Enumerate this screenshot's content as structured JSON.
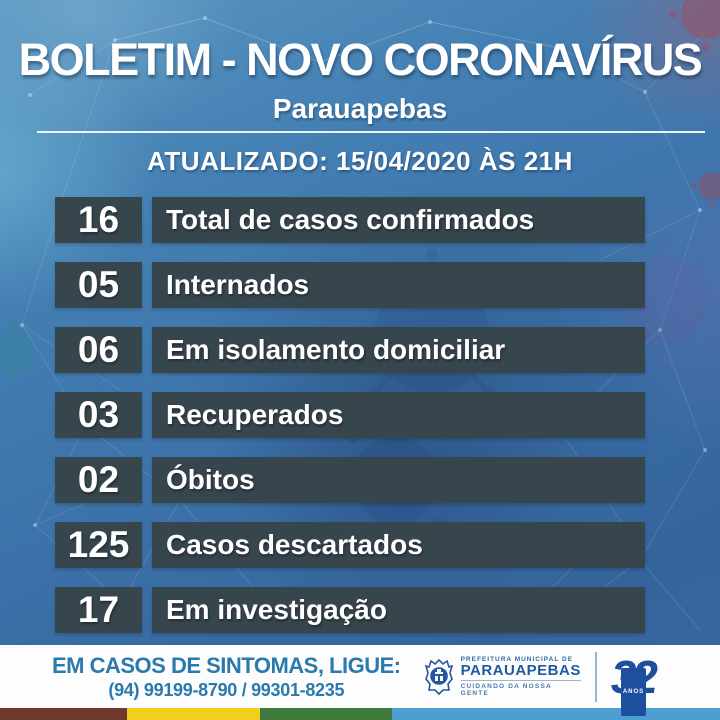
{
  "header": {
    "title": "BOLETIM - NOVO CORONAVÍRUS",
    "subtitle": "Parauapebas",
    "updated": "ATUALIZADO: 15/04/2020 ÀS 21H"
  },
  "stats": [
    {
      "value": "16",
      "label": "Total de casos confirmados"
    },
    {
      "value": "05",
      "label": "Internados"
    },
    {
      "value": "06",
      "label": "Em isolamento domiciliar"
    },
    {
      "value": "03",
      "label": "Recuperados"
    },
    {
      "value": "02",
      "label": "Óbitos"
    },
    {
      "value": "125",
      "label": "Casos descartados"
    },
    {
      "value": "17",
      "label": "Em investigação"
    }
  ],
  "footer": {
    "call_heading": "EM CASOS DE SINTOMAS, LIGUE:",
    "phone_numbers": "(94) 99199-8790 / 99301-8235",
    "logo": {
      "line1": "PREFEITURA MUNICIPAL DE",
      "name": "PARAUAPEBAS",
      "tagline": "CUIDANDO DA NOSSA GENTE",
      "anniversary_number": "32",
      "anniversary_label": "ANOS"
    },
    "stripe": [
      {
        "color": "#6e3a2e",
        "width_pct": 17.6
      },
      {
        "color": "#f2cf1c",
        "width_pct": 18.5
      },
      {
        "color": "#3f7a3c",
        "width_pct": 18.4
      },
      {
        "color": "#4d9fd2",
        "width_pct": 45.5
      }
    ]
  },
  "colors": {
    "stat_box_bg": "#37454d",
    "text_light": "#ffffff",
    "footer_text_blue": "#2a7aae",
    "logo_blue": "#1d5aa0",
    "anniversary_blue": "#1d4f9e",
    "background_blue": "#3c73aa"
  }
}
